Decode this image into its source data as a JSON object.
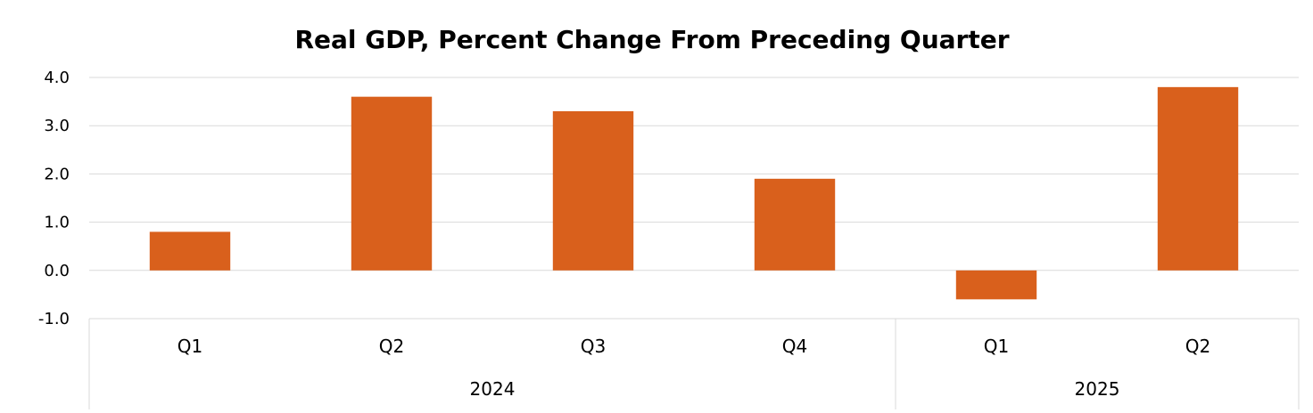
{
  "chart_data": {
    "type": "bar",
    "title": "Real GDP, Percent Change From Preceding Quarter",
    "xlabel": "",
    "ylabel": "",
    "groups": [
      {
        "label": "2024",
        "categories": [
          "Q1",
          "Q2",
          "Q3",
          "Q4"
        ]
      },
      {
        "label": "2025",
        "categories": [
          "Q1",
          "Q2"
        ]
      }
    ],
    "categories": [
      "Q1",
      "Q2",
      "Q3",
      "Q4",
      "Q1",
      "Q2"
    ],
    "values": [
      0.8,
      3.6,
      3.3,
      1.9,
      -0.6,
      3.8
    ],
    "ylim": [
      -1.0,
      4.0
    ],
    "yticks": [
      "-1.0",
      "0.0",
      "1.0",
      "2.0",
      "3.0",
      "4.0"
    ],
    "grid": true,
    "bar_color": "#D9601C",
    "grid_color": "#D9D9D9"
  }
}
